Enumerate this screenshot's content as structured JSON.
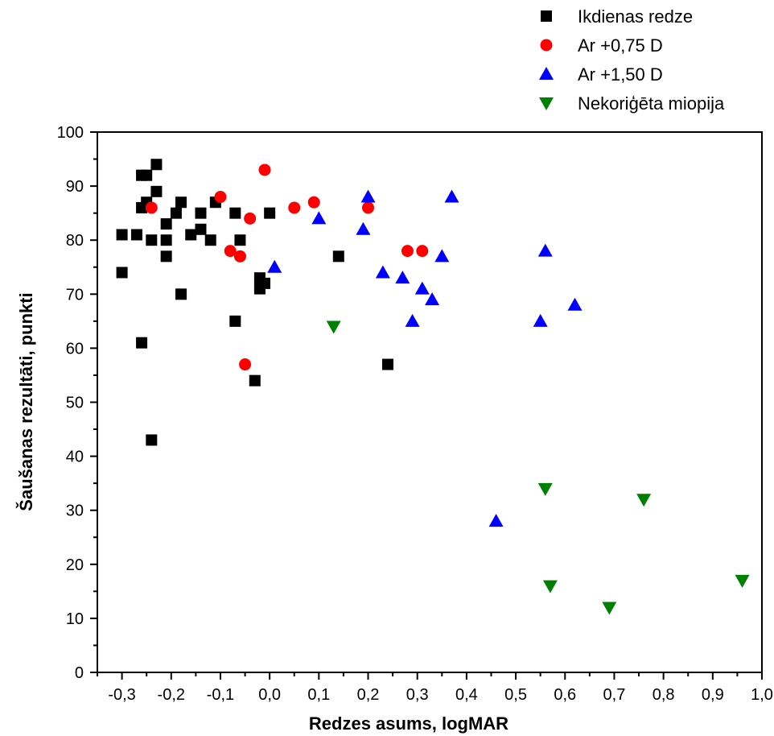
{
  "chart_data": {
    "type": "scatter",
    "xlabel": "Redzes asums, logMAR",
    "ylabel": "Šaušanas rezultāti, punkti",
    "xlim": [
      -0.35,
      1.0
    ],
    "ylim": [
      0,
      100
    ],
    "xticks": [
      "-0,3",
      "-0,2",
      "-0,1",
      "0,0",
      "0,1",
      "0,2",
      "0,3",
      "0,4",
      "0,5",
      "0,6",
      "0,7",
      "0,8",
      "0,9",
      "1,0"
    ],
    "xtick_values": [
      -0.3,
      -0.2,
      -0.1,
      0.0,
      0.1,
      0.2,
      0.3,
      0.4,
      0.5,
      0.6,
      0.7,
      0.8,
      0.9,
      1.0
    ],
    "yticks": [
      "0",
      "10",
      "20",
      "30",
      "40",
      "50",
      "60",
      "70",
      "80",
      "90",
      "100"
    ],
    "ytick_values": [
      0,
      10,
      20,
      30,
      40,
      50,
      60,
      70,
      80,
      90,
      100
    ],
    "grid": false,
    "legend_position": "top-right, outside plot",
    "series": [
      {
        "name": "Ikdienas redze",
        "marker": "square",
        "color": "#000000",
        "points": [
          [
            -0.3,
            81
          ],
          [
            -0.3,
            74
          ],
          [
            -0.27,
            81
          ],
          [
            -0.26,
            92
          ],
          [
            -0.26,
            86
          ],
          [
            -0.26,
            61
          ],
          [
            -0.25,
            92
          ],
          [
            -0.25,
            87
          ],
          [
            -0.24,
            80
          ],
          [
            -0.24,
            43
          ],
          [
            -0.23,
            94
          ],
          [
            -0.23,
            89
          ],
          [
            -0.21,
            83
          ],
          [
            -0.21,
            80
          ],
          [
            -0.21,
            77
          ],
          [
            -0.19,
            85
          ],
          [
            -0.18,
            87
          ],
          [
            -0.18,
            70
          ],
          [
            -0.16,
            81
          ],
          [
            -0.14,
            85
          ],
          [
            -0.14,
            82
          ],
          [
            -0.12,
            80
          ],
          [
            -0.11,
            87
          ],
          [
            -0.07,
            85
          ],
          [
            -0.07,
            65
          ],
          [
            -0.06,
            80
          ],
          [
            -0.03,
            54
          ],
          [
            -0.02,
            73
          ],
          [
            -0.02,
            71
          ],
          [
            -0.01,
            72
          ],
          [
            0.0,
            85
          ],
          [
            0.14,
            77
          ],
          [
            0.24,
            57
          ]
        ]
      },
      {
        "name": "Ar +0,75 D",
        "marker": "circle",
        "color": "#ff0000",
        "points": [
          [
            -0.24,
            86
          ],
          [
            -0.1,
            88
          ],
          [
            -0.08,
            78
          ],
          [
            -0.06,
            77
          ],
          [
            -0.04,
            84
          ],
          [
            -0.05,
            57
          ],
          [
            -0.01,
            93
          ],
          [
            0.05,
            86
          ],
          [
            0.09,
            87
          ],
          [
            0.2,
            86
          ],
          [
            0.28,
            78
          ],
          [
            0.31,
            78
          ]
        ]
      },
      {
        "name": "Ar +1,50 D",
        "marker": "triangle-up",
        "color": "#0000ff",
        "points": [
          [
            0.01,
            75
          ],
          [
            0.1,
            84
          ],
          [
            0.19,
            82
          ],
          [
            0.2,
            88
          ],
          [
            0.23,
            74
          ],
          [
            0.27,
            73
          ],
          [
            0.29,
            65
          ],
          [
            0.31,
            71
          ],
          [
            0.33,
            69
          ],
          [
            0.35,
            77
          ],
          [
            0.37,
            88
          ],
          [
            0.46,
            28
          ],
          [
            0.55,
            65
          ],
          [
            0.56,
            78
          ],
          [
            0.62,
            68
          ]
        ]
      },
      {
        "name": "Nekoriģēta miopija",
        "marker": "triangle-down",
        "color": "#008000",
        "points": [
          [
            0.13,
            64
          ],
          [
            0.56,
            34
          ],
          [
            0.57,
            16
          ],
          [
            0.69,
            12
          ],
          [
            0.76,
            32
          ],
          [
            0.96,
            17
          ]
        ]
      }
    ]
  }
}
